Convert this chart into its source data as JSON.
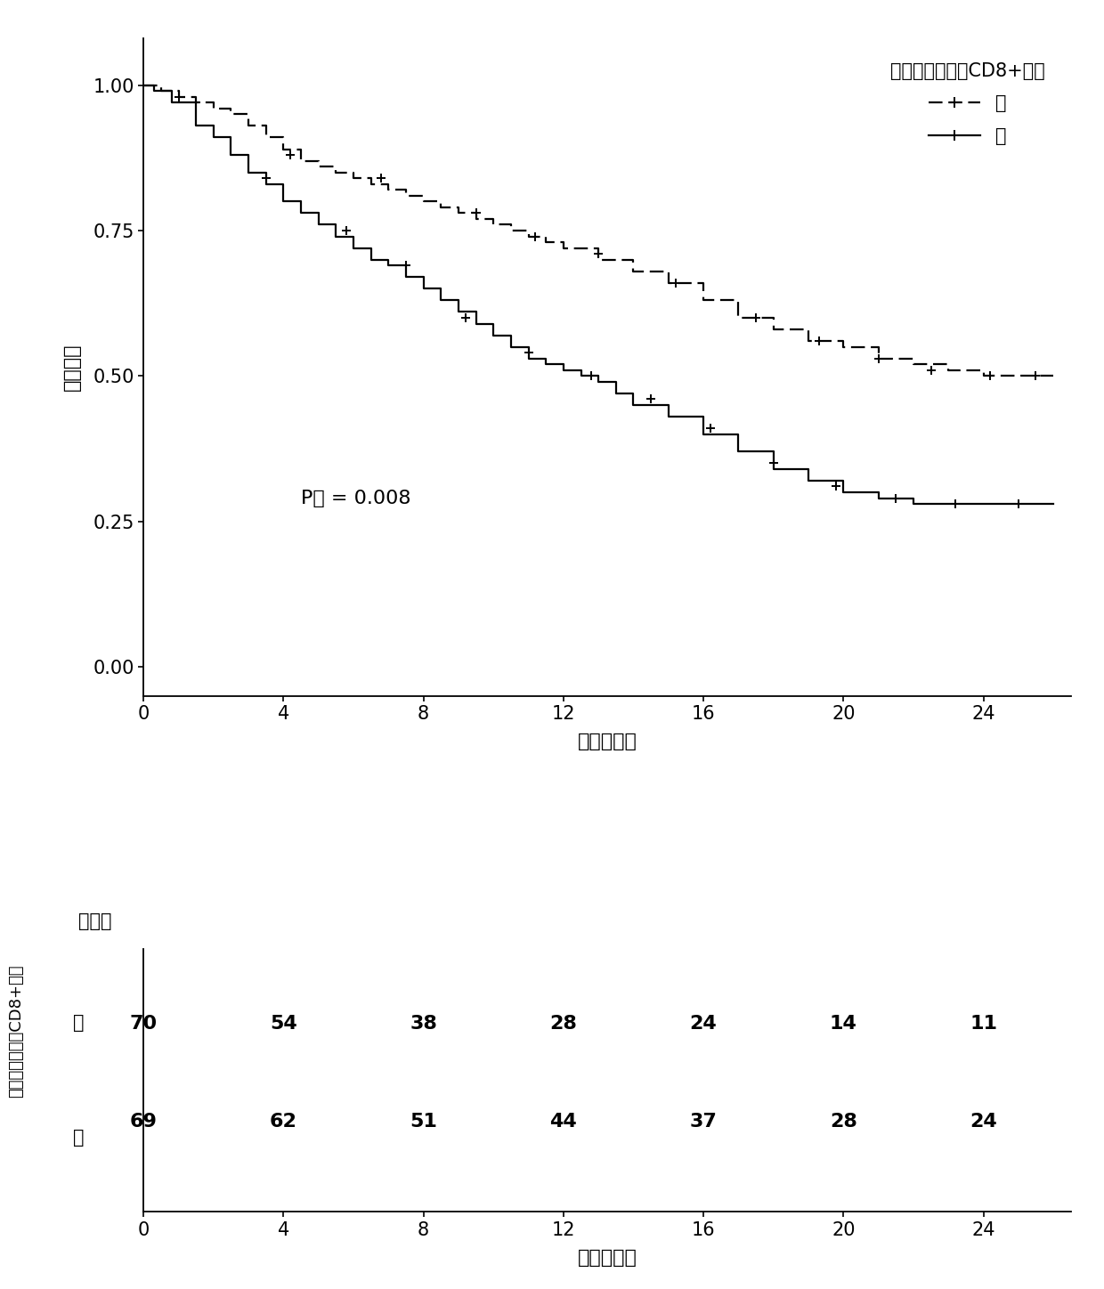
{
  "ylabel": "生存概率",
  "xlabel": "时间（月）",
  "p_value_text": "P値 = 0.008",
  "legend_title": "基于影像组学的CD8+评分",
  "legend_low": "低",
  "legend_high": "高",
  "xticks": [
    0,
    4,
    8,
    12,
    16,
    20,
    24
  ],
  "yticks": [
    0.0,
    0.25,
    0.5,
    0.75,
    1.0
  ],
  "xlim": [
    0,
    26.5
  ],
  "ylim": [
    -0.05,
    1.08
  ],
  "risk_table_title": "危险数",
  "risk_table_ylabel": "基于影像组学的CD8+评分",
  "risk_table_xlabel": "时间（月）",
  "risk_low_label": "低",
  "risk_high_label": "高",
  "risk_times": [
    0,
    4,
    8,
    12,
    16,
    20,
    24
  ],
  "risk_low": [
    70,
    54,
    38,
    28,
    24,
    14,
    11
  ],
  "risk_high": [
    69,
    62,
    51,
    44,
    37,
    28,
    24
  ],
  "low_color": "#000000",
  "high_color": "#000000",
  "low_step_t": [
    0,
    0.5,
    0.5,
    1.0,
    1.0,
    1.5,
    1.5,
    2.0,
    2.0,
    2.5,
    2.5,
    3.0,
    3.0,
    3.5,
    3.5,
    4.0,
    4.0,
    4.5,
    4.5,
    5.0,
    5.0,
    5.5,
    5.5,
    6.0,
    6.0,
    6.5,
    6.5,
    7.0,
    7.0,
    7.5,
    7.5,
    8.0,
    8.0,
    8.5,
    8.5,
    9.0,
    9.0,
    9.5,
    9.5,
    10.0,
    10.0,
    10.5,
    10.5,
    11.0,
    11.0,
    11.5,
    11.5,
    12.0,
    12.0,
    13.0,
    13.0,
    14.0,
    14.0,
    15.0,
    15.0,
    16.0,
    16.0,
    17.0,
    17.0,
    18.0,
    18.0,
    19.0,
    19.0,
    20.0,
    20.0,
    21.0,
    21.0,
    22.0,
    22.0,
    23.0,
    23.0,
    24.0,
    24.0,
    25.0,
    25.0,
    26.0
  ],
  "low_step_s": [
    1.0,
    1.0,
    0.99,
    0.99,
    0.98,
    0.98,
    0.97,
    0.97,
    0.96,
    0.96,
    0.95,
    0.95,
    0.93,
    0.93,
    0.91,
    0.91,
    0.89,
    0.89,
    0.87,
    0.87,
    0.86,
    0.86,
    0.85,
    0.85,
    0.84,
    0.84,
    0.83,
    0.83,
    0.82,
    0.82,
    0.81,
    0.81,
    0.8,
    0.8,
    0.79,
    0.79,
    0.78,
    0.78,
    0.77,
    0.77,
    0.76,
    0.76,
    0.75,
    0.75,
    0.74,
    0.74,
    0.73,
    0.73,
    0.72,
    0.72,
    0.7,
    0.7,
    0.68,
    0.68,
    0.66,
    0.66,
    0.63,
    0.63,
    0.6,
    0.6,
    0.58,
    0.58,
    0.56,
    0.56,
    0.55,
    0.55,
    0.53,
    0.53,
    0.52,
    0.52,
    0.51,
    0.51,
    0.5,
    0.5,
    0.5,
    0.5
  ],
  "high_step_t": [
    0,
    0.3,
    0.3,
    0.8,
    0.8,
    1.5,
    1.5,
    2.0,
    2.0,
    2.5,
    2.5,
    3.0,
    3.0,
    3.5,
    3.5,
    4.0,
    4.0,
    4.5,
    4.5,
    5.0,
    5.0,
    5.5,
    5.5,
    6.0,
    6.0,
    6.5,
    6.5,
    7.0,
    7.0,
    7.5,
    7.5,
    8.0,
    8.0,
    8.5,
    8.5,
    9.0,
    9.0,
    9.5,
    9.5,
    10.0,
    10.0,
    10.5,
    10.5,
    11.0,
    11.0,
    11.5,
    11.5,
    12.0,
    12.0,
    12.5,
    12.5,
    13.0,
    13.0,
    13.5,
    13.5,
    14.0,
    14.0,
    15.0,
    15.0,
    16.0,
    16.0,
    17.0,
    17.0,
    18.0,
    18.0,
    19.0,
    19.0,
    20.0,
    20.0,
    21.0,
    21.0,
    22.0,
    22.0,
    23.0,
    23.0,
    24.0,
    24.0,
    25.0,
    25.0,
    26.0
  ],
  "high_step_s": [
    1.0,
    1.0,
    0.99,
    0.99,
    0.97,
    0.97,
    0.93,
    0.93,
    0.91,
    0.91,
    0.88,
    0.88,
    0.85,
    0.85,
    0.83,
    0.83,
    0.8,
    0.8,
    0.78,
    0.78,
    0.76,
    0.76,
    0.74,
    0.74,
    0.72,
    0.72,
    0.7,
    0.7,
    0.69,
    0.69,
    0.67,
    0.67,
    0.65,
    0.65,
    0.63,
    0.63,
    0.61,
    0.61,
    0.59,
    0.59,
    0.57,
    0.57,
    0.55,
    0.55,
    0.53,
    0.53,
    0.52,
    0.52,
    0.51,
    0.51,
    0.5,
    0.5,
    0.49,
    0.49,
    0.47,
    0.47,
    0.45,
    0.45,
    0.43,
    0.43,
    0.4,
    0.4,
    0.37,
    0.37,
    0.34,
    0.34,
    0.32,
    0.32,
    0.3,
    0.3,
    0.29,
    0.29,
    0.28,
    0.28,
    0.28,
    0.28,
    0.28,
    0.28,
    0.28,
    0.28
  ],
  "low_censor_t": [
    1.5,
    4.2,
    6.8,
    9.5,
    11.2,
    13.0,
    15.2,
    17.5,
    19.3,
    21.0,
    22.5,
    24.2,
    25.5
  ],
  "low_censor_s": [
    0.97,
    0.88,
    0.84,
    0.78,
    0.74,
    0.71,
    0.66,
    0.6,
    0.56,
    0.53,
    0.51,
    0.5,
    0.5
  ],
  "high_censor_t": [
    1.0,
    3.5,
    5.8,
    7.5,
    9.2,
    11.0,
    12.8,
    14.5,
    16.2,
    18.0,
    19.8,
    21.5,
    23.2,
    25.0
  ],
  "high_censor_s": [
    0.98,
    0.84,
    0.75,
    0.69,
    0.6,
    0.54,
    0.5,
    0.46,
    0.41,
    0.35,
    0.31,
    0.29,
    0.28,
    0.28
  ]
}
